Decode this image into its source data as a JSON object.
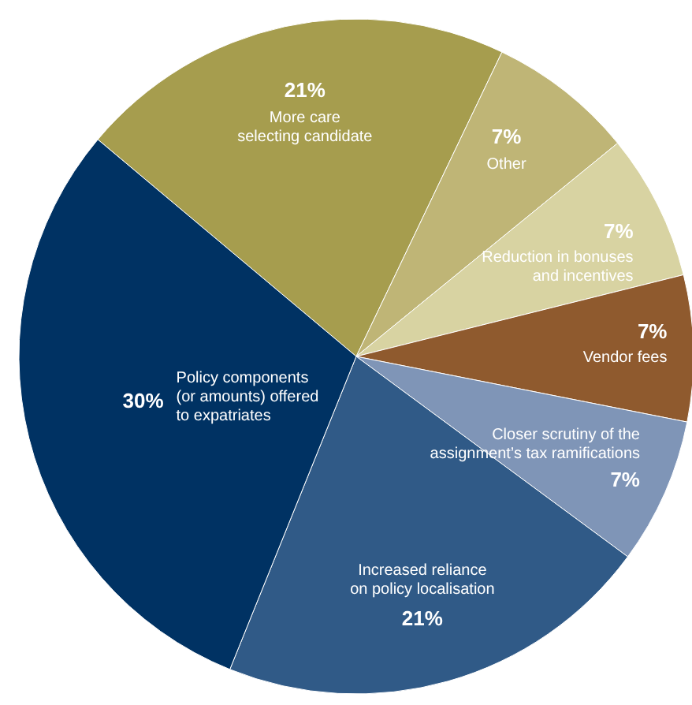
{
  "chart_data": {
    "type": "pie",
    "categories": [
      "More care\nselecting candidate",
      "Other",
      "Reduction in bonuses\nand incentives",
      "Vendor fees",
      "Closer scrutiny of the\nassignment’s tax ramifications",
      "Increased reliance\non policy localisation",
      "Policy components\n(or amounts) offered\nto expatriates"
    ],
    "values": [
      21,
      7,
      7,
      7,
      7,
      21,
      30
    ],
    "colors": [
      "#a69d4e",
      "#bfb576",
      "#d8d3a2",
      "#8f5a2e",
      "#7f95b7",
      "#305a87",
      "#003263"
    ],
    "value_labels": [
      "21%",
      "7%",
      "7%",
      "7%",
      "7%",
      "21%",
      "30%"
    ]
  }
}
